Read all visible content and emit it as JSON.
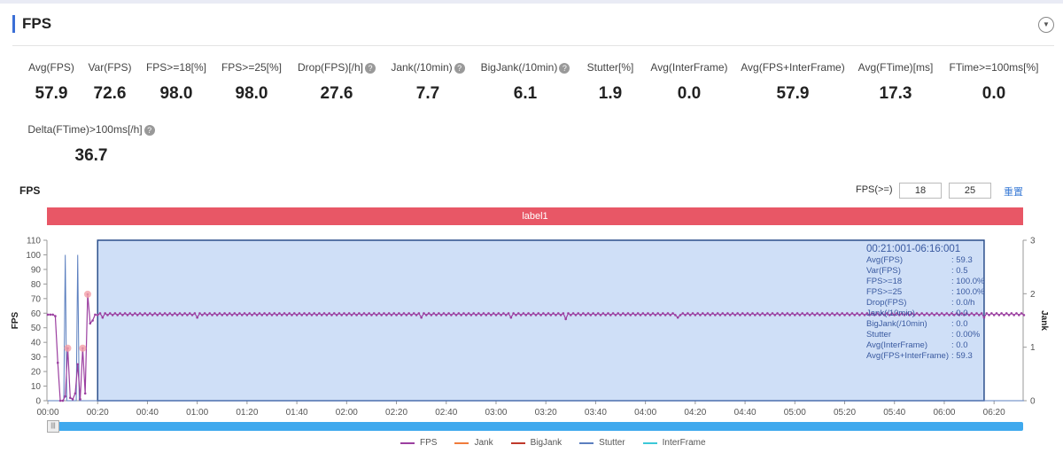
{
  "header": {
    "title": "FPS",
    "collapse_icon": "chevron-down-circle-icon"
  },
  "metrics": [
    {
      "label": "Avg(FPS)",
      "value": "57.9",
      "help": false
    },
    {
      "label": "Var(FPS)",
      "value": "72.6",
      "help": false
    },
    {
      "label": "FPS>=18[%]",
      "value": "98.0",
      "help": false
    },
    {
      "label": "FPS>=25[%]",
      "value": "98.0",
      "help": false
    },
    {
      "label": "Drop(FPS)[/h]",
      "value": "27.6",
      "help": true
    },
    {
      "label": "Jank(/10min)",
      "value": "7.7",
      "help": true
    },
    {
      "label": "BigJank(/10min)",
      "value": "6.1",
      "help": true
    },
    {
      "label": "Stutter[%]",
      "value": "1.9",
      "help": false
    },
    {
      "label": "Avg(InterFrame)",
      "value": "0.0",
      "help": false
    },
    {
      "label": "Avg(FPS+InterFrame)",
      "value": "57.9",
      "help": false
    },
    {
      "label": "Avg(FTime)[ms]",
      "value": "17.3",
      "help": false
    },
    {
      "label": "FTime>=100ms[%]",
      "value": "0.0",
      "help": false
    },
    {
      "label": "Delta(FTime)>100ms[/h]",
      "value": "36.7",
      "help": true
    }
  ],
  "help_glyph": "?",
  "chart_header": {
    "title": "FPS",
    "threshold_label": "FPS(>=)",
    "threshold1": "18",
    "threshold2": "25",
    "reset": "重置"
  },
  "label_bar": "label1",
  "tooltip": {
    "title": "00:21:001-06:16:001",
    "rows": [
      [
        "Avg(FPS)",
        ": 59.3"
      ],
      [
        "Var(FPS)",
        ": 0.5"
      ],
      [
        "FPS>=18",
        ": 100.0%"
      ],
      [
        "FPS>=25",
        ": 100.0%"
      ],
      [
        "Drop(FPS)",
        ": 0.0/h"
      ],
      [
        "Jank(/10min)",
        ": 0.0"
      ],
      [
        "BigJank(/10min)",
        ": 0.0"
      ],
      [
        "Stutter",
        ": 0.00%"
      ],
      [
        "Avg(InterFrame)",
        ": 0.0"
      ],
      [
        "Avg(FPS+InterFrame)",
        ": 59.3"
      ]
    ]
  },
  "chart_data": {
    "type": "line",
    "ylabel": "FPS",
    "y2label": "Jank",
    "ylim": [
      0,
      110
    ],
    "y2lim": [
      0,
      3
    ],
    "yticks": [
      "0",
      "10",
      "20",
      "30",
      "40",
      "50",
      "60",
      "70",
      "80",
      "90",
      "100",
      "110"
    ],
    "y2ticks": [
      "0",
      "1",
      "2",
      "3"
    ],
    "xlim_seconds": [
      0,
      392
    ],
    "xticks": [
      "00:00",
      "00:20",
      "00:40",
      "01:00",
      "01:20",
      "01:40",
      "02:00",
      "02:20",
      "02:40",
      "03:00",
      "03:20",
      "03:40",
      "04:00",
      "04:20",
      "04:40",
      "05:00",
      "05:20",
      "05:40",
      "06:00",
      "06:20"
    ],
    "fps_early": [
      59,
      59,
      59,
      58,
      26,
      0,
      0,
      3,
      36,
      2,
      1,
      5,
      25,
      1,
      36,
      5,
      73,
      53,
      55,
      59
    ],
    "fps_steady": 59.3,
    "fps_dips": [
      [
        22,
        57
      ],
      [
        60,
        57
      ],
      [
        150,
        57
      ],
      [
        186,
        57
      ],
      [
        208,
        56
      ],
      [
        253,
        57
      ],
      [
        376,
        57
      ]
    ],
    "stutter_spikes": [
      [
        7,
        100
      ],
      [
        12,
        100
      ]
    ],
    "jank_points": [
      [
        8,
        36
      ],
      [
        14,
        36
      ],
      [
        16,
        73
      ]
    ],
    "selection_seconds": [
      20,
      376
    ],
    "legend": [
      "FPS",
      "Jank",
      "BigJank",
      "Stutter",
      "InterFrame"
    ],
    "colors": {
      "FPS": "#9b3fa0",
      "Jank": "#f07c3c",
      "BigJank": "#c0392b",
      "Stutter": "#5b7fbf",
      "InterFrame": "#3cc8d8"
    }
  }
}
